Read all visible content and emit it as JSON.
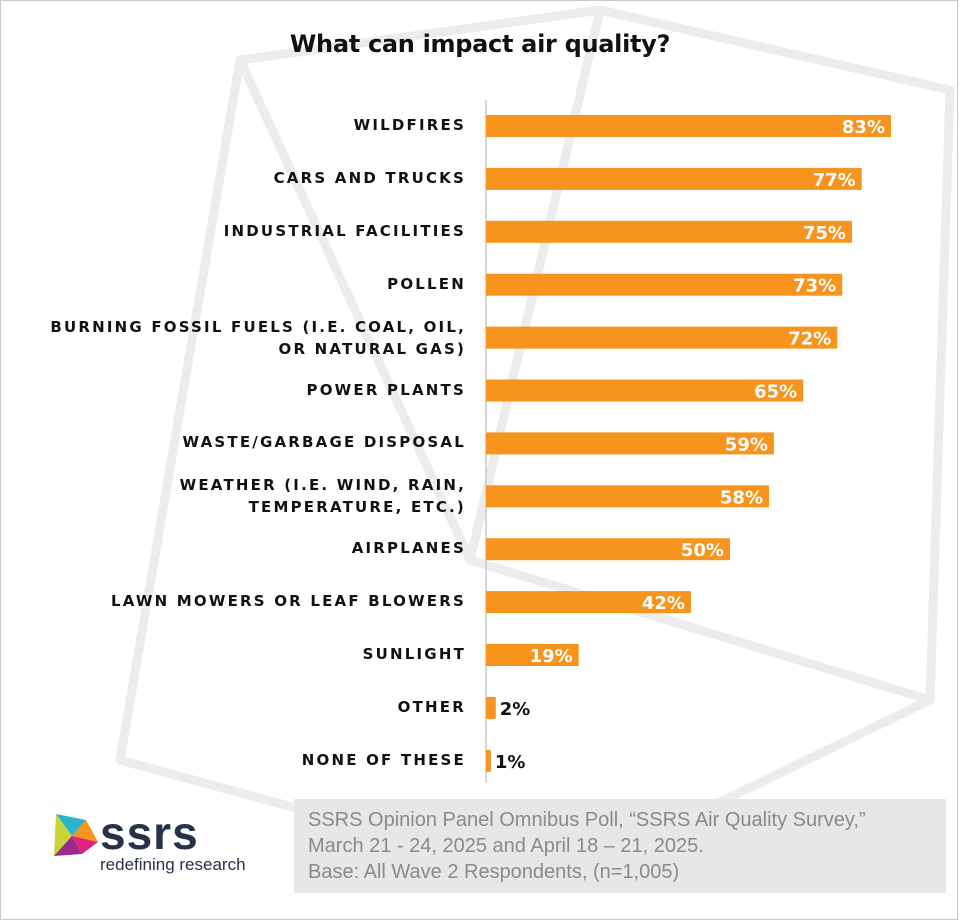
{
  "chart_data": {
    "type": "bar",
    "orientation": "horizontal",
    "title": "What can impact air quality?",
    "categories": [
      [
        "WILDFIRES"
      ],
      [
        "CARS AND TRUCKS"
      ],
      [
        "INDUSTRIAL FACILITIES"
      ],
      [
        "POLLEN"
      ],
      [
        "BURNING FOSSIL FUELS (I.E. COAL, OIL,",
        "OR NATURAL GAS)"
      ],
      [
        "POWER PLANTS"
      ],
      [
        "WASTE/GARBAGE DISPOSAL"
      ],
      [
        "WEATHER (I.E. WIND, RAIN,",
        "TEMPERATURE, ETC.)"
      ],
      [
        "AIRPLANES"
      ],
      [
        "LAWN MOWERS OR LEAF BLOWERS"
      ],
      [
        "SUNLIGHT"
      ],
      [
        "OTHER"
      ],
      [
        "NONE OF THESE"
      ]
    ],
    "values": [
      83,
      77,
      75,
      73,
      72,
      65,
      59,
      58,
      50,
      42,
      19,
      2,
      1
    ],
    "value_labels": [
      "83%",
      "77%",
      "75%",
      "73%",
      "72%",
      "65%",
      "59%",
      "58%",
      "50%",
      "42%",
      "19%",
      "2%",
      "1%"
    ],
    "xlim": [
      0,
      100
    ],
    "bar_color": "#f7941d",
    "xlabel": "",
    "ylabel": ""
  },
  "footnote": {
    "lines": [
      "SSRS Opinion Panel Omnibus Poll, “SSRS Air Quality Survey,”",
      "March 21 - 24, 2025 and April 18 – 21, 2025.",
      "Base: All Wave 2 Respondents, (n=1,005)"
    ]
  },
  "logo": {
    "name": "ssrs",
    "tagline": "redefining research"
  },
  "colors": {
    "bar": "#f7941d",
    "footnote_bg": "#e7e7e7",
    "footnote_text": "#8a8a8a",
    "logo_text": "#27324a"
  }
}
